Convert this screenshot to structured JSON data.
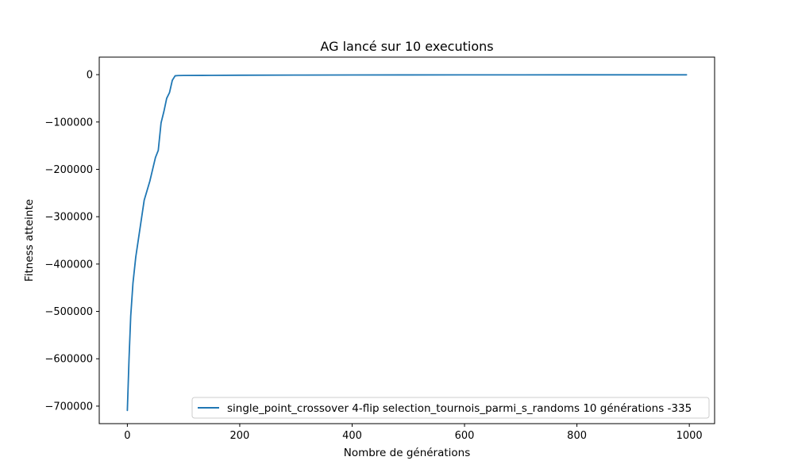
{
  "chart_data": {
    "type": "line",
    "title": "AG lancé sur 10 executions",
    "xlabel": "Nombre de générations",
    "ylabel": "Fitness atteinte",
    "xlim": [
      -50,
      1045
    ],
    "ylim": [
      -737000,
      37000
    ],
    "x_ticks": [
      0,
      200,
      400,
      600,
      800,
      1000
    ],
    "x_tick_labels": [
      "0",
      "200",
      "400",
      "600",
      "800",
      "1000"
    ],
    "y_ticks": [
      0,
      -100000,
      -200000,
      -300000,
      -400000,
      -500000,
      -600000,
      -700000
    ],
    "y_tick_labels": [
      "0",
      "−100000",
      "−200000",
      "−300000",
      "−400000",
      "−500000",
      "−600000",
      "−700000"
    ],
    "grid": false,
    "legend_position": "lower right",
    "series": [
      {
        "name": "single_point_crossover 4-flip selection_tournois_parmi_s_randoms 10 générations -335",
        "color": "#1f77b4",
        "x": [
          0,
          3,
          6,
          10,
          15,
          20,
          25,
          30,
          35,
          40,
          45,
          50,
          55,
          60,
          65,
          70,
          75,
          80,
          85,
          90,
          100,
          150,
          200,
          300,
          400,
          500,
          600,
          700,
          800,
          900,
          995
        ],
        "y": [
          -709000,
          -600000,
          -510000,
          -440000,
          -385000,
          -345000,
          -305000,
          -265000,
          -245000,
          -225000,
          -200000,
          -175000,
          -160000,
          -102000,
          -78000,
          -50000,
          -38000,
          -12000,
          -2500,
          -2000,
          -1800,
          -1500,
          -1200,
          -900,
          -700,
          -600,
          -500,
          -450,
          -400,
          -350,
          -335
        ]
      }
    ]
  }
}
